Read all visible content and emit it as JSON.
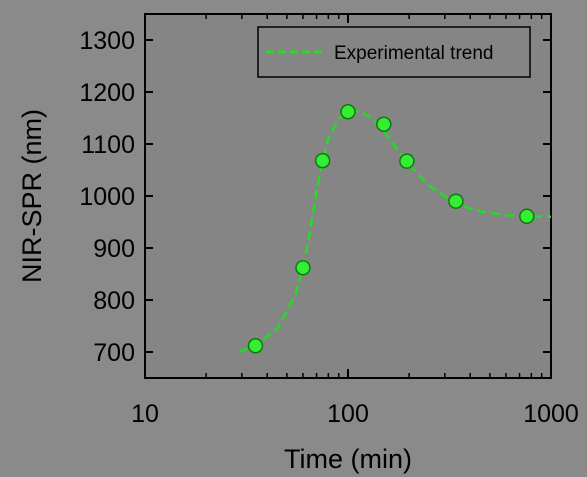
{
  "chart_data": {
    "type": "scatter",
    "title": "",
    "xlabel": "Time (min)",
    "ylabel": "NIR-SPR (nm)",
    "xscale": "log",
    "xlim": [
      10,
      1000
    ],
    "ylim": [
      650,
      1350
    ],
    "xticks": [
      10,
      100,
      1000
    ],
    "xtick_labels": [
      "10",
      "100",
      "1000"
    ],
    "yticks": [
      700,
      800,
      900,
      1000,
      1100,
      1200,
      1300
    ],
    "ytick_labels": [
      "700",
      "800",
      "900",
      "1000",
      "1100",
      "1200",
      "1300"
    ],
    "grid": false,
    "legend_position": "top-right",
    "series": [
      {
        "name": "",
        "kind": "markers",
        "color": "#33ee33",
        "x": [
          35,
          60,
          75,
          100,
          150,
          195,
          340,
          760
        ],
        "y": [
          712,
          862,
          1068,
          1162,
          1138,
          1067,
          990,
          961
        ]
      },
      {
        "name": "Experimental trend",
        "kind": "dashed-line",
        "color": "#22dd22",
        "x": [
          29,
          35,
          45,
          55,
          60,
          65,
          70,
          75,
          80,
          90,
          100,
          115,
          130,
          150,
          175,
          200,
          250,
          340,
          450,
          600,
          760,
          1000
        ],
        "y": [
          700,
          712,
          745,
          810,
          862,
          930,
          1010,
          1068,
          1110,
          1148,
          1165,
          1163,
          1150,
          1125,
          1090,
          1060,
          1020,
          985,
          970,
          963,
          961,
          960
        ]
      }
    ]
  },
  "colors": {
    "background": "#8a8a8a",
    "plot_background": "#858585",
    "axis": "#000000",
    "marker_fill": "#33ee33",
    "marker_edge": "#117711",
    "trend_line": "#22dd22"
  }
}
